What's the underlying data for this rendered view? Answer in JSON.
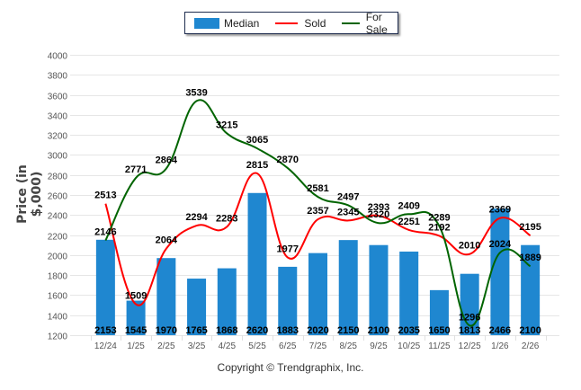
{
  "chart_data": {
    "type": "bar",
    "title": "",
    "xlabel": "",
    "ylabel": "Price (in $,000)",
    "ylim": [
      1200,
      4000
    ],
    "yticks": [
      1200,
      1400,
      1600,
      1800,
      2000,
      2200,
      2400,
      2600,
      2800,
      3000,
      3200,
      3400,
      3600,
      3800,
      4000
    ],
    "grid": true,
    "legend_position": "top-center",
    "categories": [
      "12/24",
      "1/25",
      "2/25",
      "3/25",
      "4/25",
      "5/25",
      "6/25",
      "7/25",
      "8/25",
      "9/25",
      "10/25",
      "11/25",
      "12/25",
      "1/26",
      "2/26"
    ],
    "series": [
      {
        "name": "Median",
        "type": "bar",
        "color": "#1f87d0",
        "values": [
          2153,
          1545,
          1970,
          1765,
          1868,
          2620,
          1883,
          2020,
          2150,
          2100,
          2035,
          1650,
          1813,
          2466,
          2100
        ]
      },
      {
        "name": "Sold",
        "type": "line",
        "color": "#ff0000",
        "values": [
          2513,
          1509,
          2064,
          2294,
          2283,
          2815,
          1977,
          2357,
          2345,
          2393,
          2251,
          2192,
          2010,
          2369,
          2195
        ]
      },
      {
        "name": "For Sale",
        "type": "line",
        "color": "#006400",
        "values": [
          2146,
          2771,
          2864,
          3539,
          3215,
          3065,
          2870,
          2581,
          2497,
          2320,
          2409,
          2289,
          1296,
          2024,
          1889
        ]
      }
    ]
  },
  "legend": {
    "median_label": "Median",
    "sold_label": "Sold",
    "for_sale_label": "For Sale"
  },
  "footer": {
    "copyright": "Copyright © Trendgraphix, Inc."
  }
}
